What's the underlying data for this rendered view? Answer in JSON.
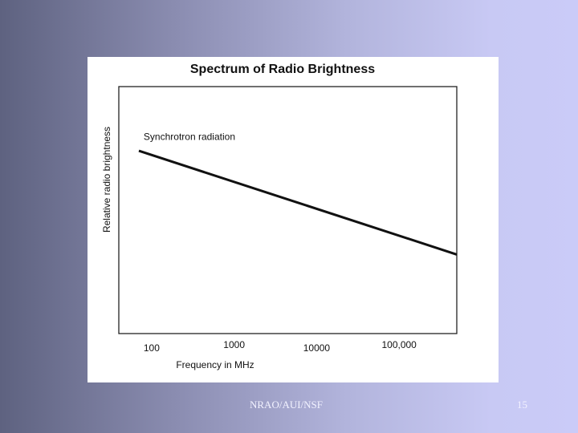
{
  "slide": {
    "footer": "NRAO/AUI/NSF",
    "page_number": "15"
  },
  "chart_data": {
    "type": "line",
    "title": "Spectrum of Radio Brightness",
    "xlabel": "Frequency in MHz",
    "ylabel": "Relative radio brightness",
    "x_scale": "log",
    "xlim": [
      40,
      500000
    ],
    "ylim": [
      0,
      1
    ],
    "x_tick_labels": [
      {
        "label": "100",
        "value": 100
      },
      {
        "label": "1000",
        "value": 1000
      },
      {
        "label": "10000",
        "value": 10000
      },
      {
        "label": "100,000",
        "value": 100000
      }
    ],
    "series": [
      {
        "points": [
          [
            70,
            0.74
          ],
          [
            500000,
            0.32
          ]
        ],
        "color": "#111111"
      }
    ],
    "annotations": [
      {
        "text": "Synchrotron radiation",
        "x": 80,
        "y": 0.8
      }
    ],
    "grid": false,
    "legend": "none",
    "colors": {
      "panel": "#ffffff",
      "line": "#111111",
      "text": "#111111"
    }
  }
}
